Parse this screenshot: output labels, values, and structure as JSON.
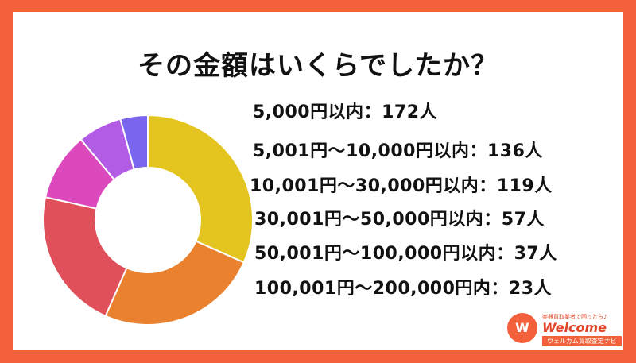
{
  "title": "その金額はいくらでしたか？",
  "chart_data": {
    "type": "pie",
    "title": "その金額はいくらでしたか？",
    "categories": [
      "5,000円以内",
      "5,001円〜10,000円以内",
      "10,001円〜30,000円以内",
      "30,001円〜50,000円以内",
      "50,001円〜100,000円以内",
      "100,001円〜200,000円内"
    ],
    "values": [
      172,
      136,
      119,
      57,
      37,
      23
    ],
    "colors": [
      "#e4c51f",
      "#e9812f",
      "#e0505a",
      "#dc49bd",
      "#b25ce6",
      "#7a66ee"
    ],
    "legend": [
      "5,000円以内：172人",
      "5,001円〜10,000円以内：136人",
      "10,001円〜30,000円以内：119人",
      "30,001円〜50,000円以内：57人",
      "50,001円〜100,000円以内：37人",
      "100,001円〜200,000円内：23人"
    ]
  },
  "logo": {
    "mark": "W",
    "tagline": "楽器買取業者で困ったら♪",
    "wordmark": "Welcome",
    "sub": "ウェルカム買取査定ナビ"
  }
}
